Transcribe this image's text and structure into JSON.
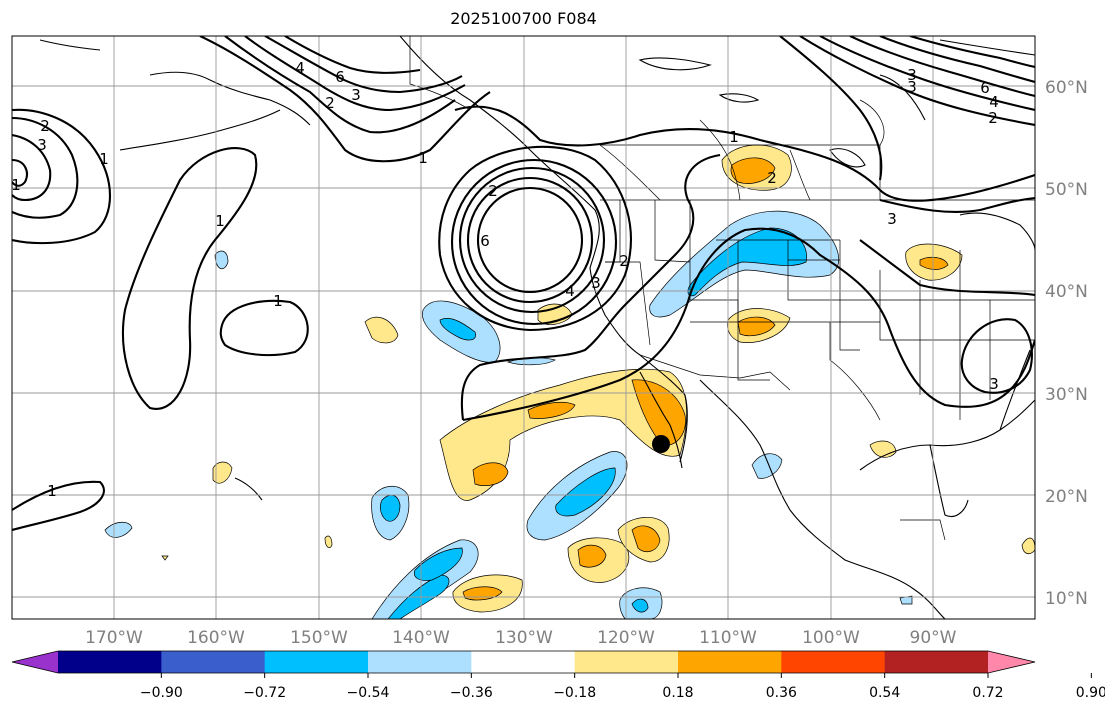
{
  "title": "2025100700 F084",
  "map": {
    "lat_labels": [
      "60°N",
      "50°N",
      "40°N",
      "30°N",
      "20°N",
      "10°N"
    ],
    "lon_labels": [
      "170°W",
      "160°W",
      "150°W",
      "140°W",
      "130°W",
      "120°W",
      "110°W",
      "100°W",
      "90°W"
    ],
    "contour_labels": [
      "1",
      "2",
      "3",
      "4",
      "6",
      "1",
      "2",
      "3",
      "1",
      "1",
      "1",
      "2",
      "6",
      "3",
      "4",
      "2",
      "1",
      "2",
      "3",
      "3",
      "3",
      "6",
      "4",
      "2",
      "1",
      "3"
    ],
    "marker": "black-dot"
  },
  "colorbar": {
    "ticks": [
      "−0.90",
      "−0.72",
      "−0.54",
      "−0.36",
      "−0.18",
      "0.18",
      "0.36",
      "0.54",
      "0.72",
      "0.90"
    ],
    "colors": [
      "#9932CC",
      "#00008B",
      "#3A5FCD",
      "#00BFFF",
      "#ADDFFF",
      "#FFFFFF",
      "#FFE78C",
      "#FFA500",
      "#FF4500",
      "#B22222",
      "#FF88AA"
    ]
  }
}
